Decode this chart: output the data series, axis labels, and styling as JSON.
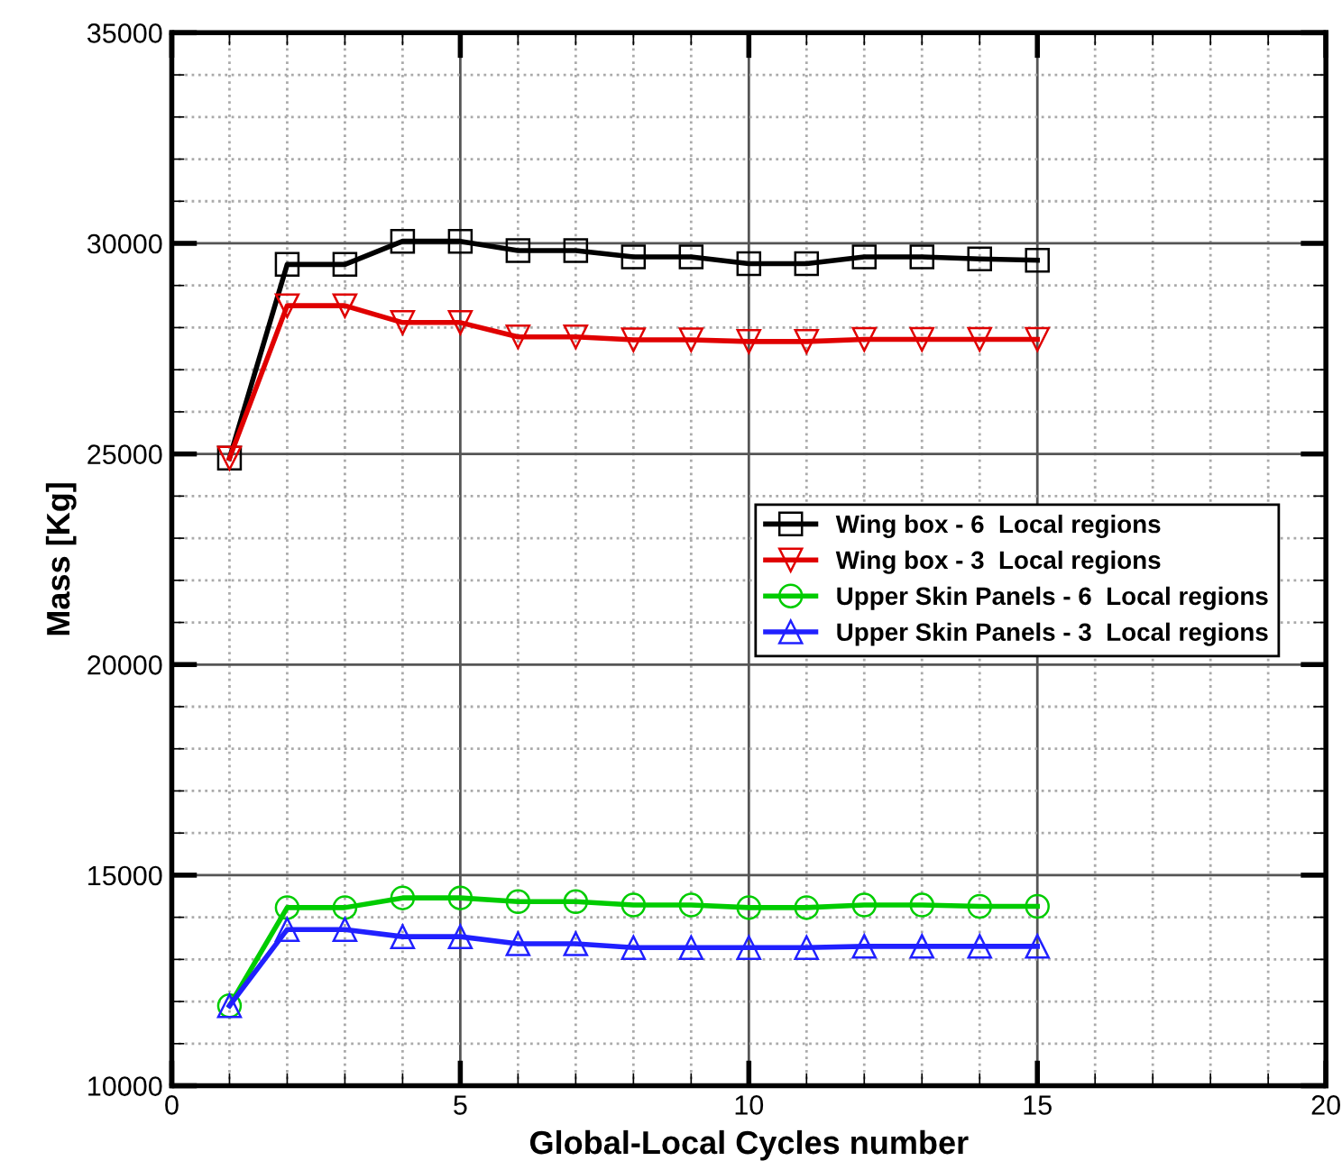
{
  "chart_data": {
    "type": "line",
    "xlabel": "Global-Local Cycles number",
    "ylabel": "Mass [Kg]",
    "x": [
      1,
      2,
      3,
      4,
      5,
      6,
      7,
      8,
      9,
      10,
      11,
      12,
      13,
      14,
      15
    ],
    "xlim": [
      0,
      20
    ],
    "xticks": [
      0,
      5,
      10,
      15,
      20
    ],
    "ylim": [
      10000,
      35000
    ],
    "yticks": [
      10000,
      15000,
      20000,
      25000,
      30000,
      35000
    ],
    "grid": true,
    "legend": "right",
    "line_style": "solid",
    "series": [
      {
        "name": "Wing box - 6  Local regions",
        "color": "#000000",
        "marker": "square",
        "values": [
          24900,
          29500,
          29500,
          30050,
          30050,
          29830,
          29830,
          29680,
          29680,
          29520,
          29520,
          29680,
          29680,
          29630,
          29600
        ]
      },
      {
        "name": "Wing box - 3  Local regions",
        "color": "#e00000",
        "marker": "triangle_down",
        "values": [
          24900,
          28520,
          28520,
          28120,
          28120,
          27780,
          27780,
          27710,
          27710,
          27670,
          27670,
          27720,
          27720,
          27720,
          27720
        ]
      },
      {
        "name": "Upper Skin Panels - 6  Local regions",
        "color": "#00cc00",
        "marker": "circle",
        "values": [
          11900,
          14230,
          14230,
          14460,
          14460,
          14370,
          14370,
          14290,
          14290,
          14230,
          14230,
          14290,
          14290,
          14260,
          14260
        ]
      },
      {
        "name": "Upper Skin Panels - 3  Local regions",
        "color": "#2020ff",
        "marker": "triangle",
        "values": [
          11900,
          13710,
          13710,
          13540,
          13540,
          13370,
          13370,
          13280,
          13280,
          13280,
          13280,
          13310,
          13310,
          13310,
          13310
        ]
      }
    ]
  }
}
